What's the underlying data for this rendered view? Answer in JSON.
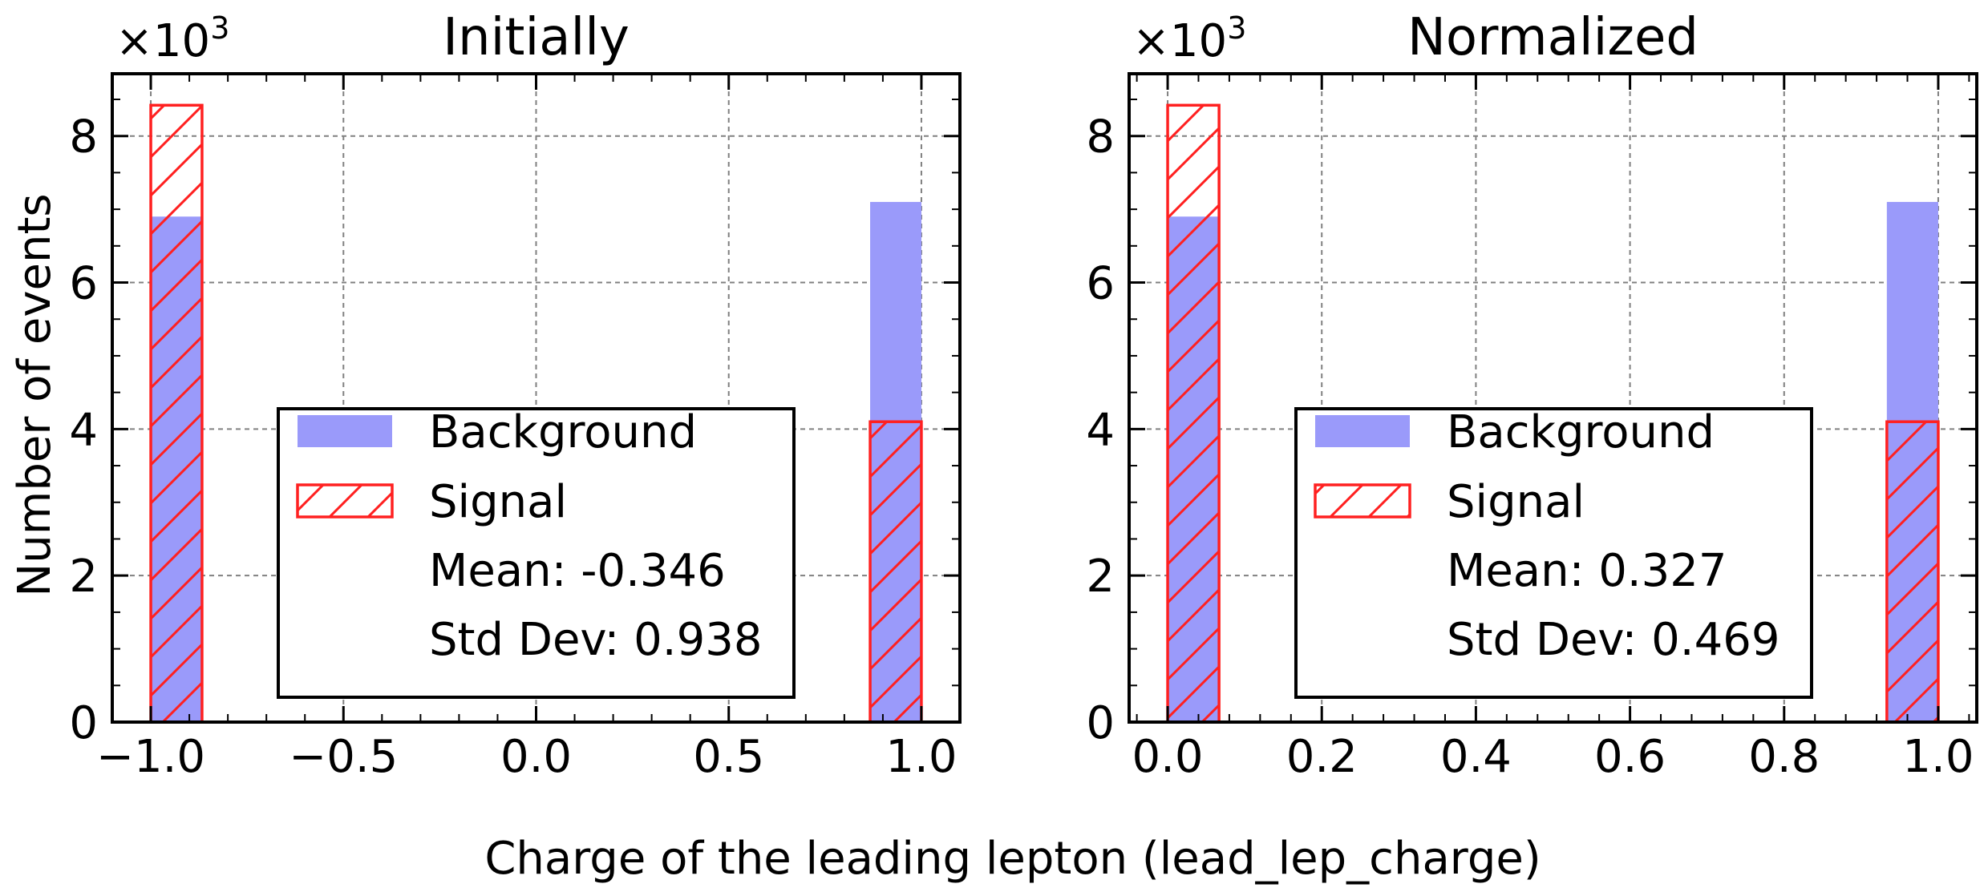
{
  "figure": {
    "ylabel": "Number of events",
    "xlabel": "Charge of the leading lepton (lead_lep_charge)",
    "multiplier": {
      "base": "×10",
      "exp": "3"
    }
  },
  "colors": {
    "background_fill": "#9a9afa",
    "signal_edge": "#ff2020",
    "grid": "#808080"
  },
  "chart_data": [
    {
      "type": "bar",
      "title": "Initially",
      "xlim": [
        -1.1,
        1.1
      ],
      "ylim": [
        0,
        8.85
      ],
      "grid": true,
      "legend_position": "lower center",
      "xticks": [
        -1.0,
        -0.5,
        0.0,
        0.5,
        1.0
      ],
      "xtick_labels": [
        "−1.0",
        "−0.5",
        "0.0",
        "0.5",
        "1.0"
      ],
      "yticks": [
        0,
        2,
        4,
        6,
        8
      ],
      "ytick_labels": [
        "0",
        "2",
        "4",
        "6",
        "8"
      ],
      "series": [
        {
          "name": "Background",
          "bins": [
            [
              -1.0,
              -0.867,
              6.9
            ],
            [
              0.867,
              1.0,
              7.1
            ]
          ]
        },
        {
          "name": "Signal",
          "bins": [
            [
              -1.0,
              -0.867,
              8.42
            ],
            [
              0.867,
              1.0,
              4.1
            ]
          ]
        }
      ],
      "legend": {
        "entries": [
          "Background",
          "Signal"
        ],
        "stats": [
          "Mean: -0.346",
          "Std Dev: 0.938"
        ]
      }
    },
    {
      "type": "bar",
      "title": "Normalized",
      "xlim": [
        -0.05,
        1.05
      ],
      "ylim": [
        0,
        8.85
      ],
      "grid": true,
      "legend_position": "lower center",
      "xticks": [
        0.0,
        0.2,
        0.4,
        0.6,
        0.8,
        1.0
      ],
      "xtick_labels": [
        "0.0",
        "0.2",
        "0.4",
        "0.6",
        "0.8",
        "1.0"
      ],
      "yticks": [
        0,
        2,
        4,
        6,
        8
      ],
      "ytick_labels": [
        "0",
        "2",
        "4",
        "6",
        "8"
      ],
      "series": [
        {
          "name": "Background",
          "bins": [
            [
              0.0,
              0.0667,
              6.9
            ],
            [
              0.9333,
              1.0,
              7.1
            ]
          ]
        },
        {
          "name": "Signal",
          "bins": [
            [
              0.0,
              0.0667,
              8.42
            ],
            [
              0.9333,
              1.0,
              4.1
            ]
          ]
        }
      ],
      "legend": {
        "entries": [
          "Background",
          "Signal"
        ],
        "stats": [
          "Mean: 0.327",
          "Std Dev: 0.469"
        ]
      }
    }
  ]
}
